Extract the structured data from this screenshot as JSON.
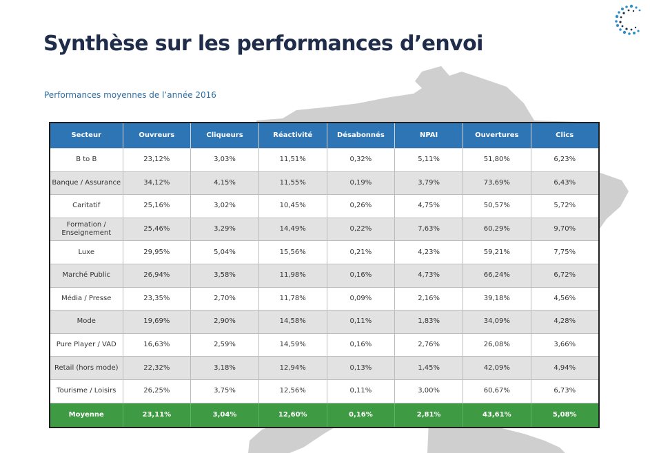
{
  "title": "Synthèse sur les performances d’envoi",
  "subtitle": "Performances moyennes de l’année 2016",
  "colors": {
    "title": "#1f2d4b",
    "subtitle": "#2e6ea3",
    "header_bg": "#2e75b6",
    "footer_bg": "#3f9b43",
    "row_alt_bg": "#e2e2e2",
    "map_silhouette": "#cfcfcf"
  },
  "logo_icon": "dotted-c-logo-icon",
  "table": {
    "columns": [
      "Secteur",
      "Ouvreurs",
      "Cliqueurs",
      "Réactivité",
      "Désabonnés",
      "NPAI",
      "Ouvertures",
      "Clics"
    ],
    "rows": [
      [
        "B to B",
        "23,12%",
        "3,03%",
        "11,51%",
        "0,32%",
        "5,11%",
        "51,80%",
        "6,23%"
      ],
      [
        "Banque / Assurance",
        "34,12%",
        "4,15%",
        "11,55%",
        "0,19%",
        "3,79%",
        "73,69%",
        "6,43%"
      ],
      [
        "Caritatif",
        "25,16%",
        "3,02%",
        "10,45%",
        "0,26%",
        "4,75%",
        "50,57%",
        "5,72%"
      ],
      [
        "Formation / Enseignement",
        "25,46%",
        "3,29%",
        "14,49%",
        "0,22%",
        "7,63%",
        "60,29%",
        "9,70%"
      ],
      [
        "Luxe",
        "29,95%",
        "5,04%",
        "15,56%",
        "0,21%",
        "4,23%",
        "59,21%",
        "7,75%"
      ],
      [
        "Marché Public",
        "26,94%",
        "3,58%",
        "11,98%",
        "0,16%",
        "4,73%",
        "66,24%",
        "6,72%"
      ],
      [
        "Média / Presse",
        "23,35%",
        "2,70%",
        "11,78%",
        "0,09%",
        "2,16%",
        "39,18%",
        "4,56%"
      ],
      [
        "Mode",
        "19,69%",
        "2,90%",
        "14,58%",
        "0,11%",
        "1,83%",
        "34,09%",
        "4,28%"
      ],
      [
        "Pure Player / VAD",
        "16,63%",
        "2,59%",
        "14,59%",
        "0,16%",
        "2,76%",
        "26,08%",
        "3,66%"
      ],
      [
        "Retail (hors mode)",
        "22,32%",
        "3,18%",
        "12,94%",
        "0,13%",
        "1,45%",
        "42,09%",
        "4,94%"
      ],
      [
        "Tourisme / Loisirs",
        "26,25%",
        "3,75%",
        "12,56%",
        "0,11%",
        "3,00%",
        "60,67%",
        "6,73%"
      ]
    ],
    "footer": [
      "Moyenne",
      "23,11%",
      "3,04%",
      "12,60%",
      "0,16%",
      "2,81%",
      "43,61%",
      "5,08%"
    ]
  }
}
